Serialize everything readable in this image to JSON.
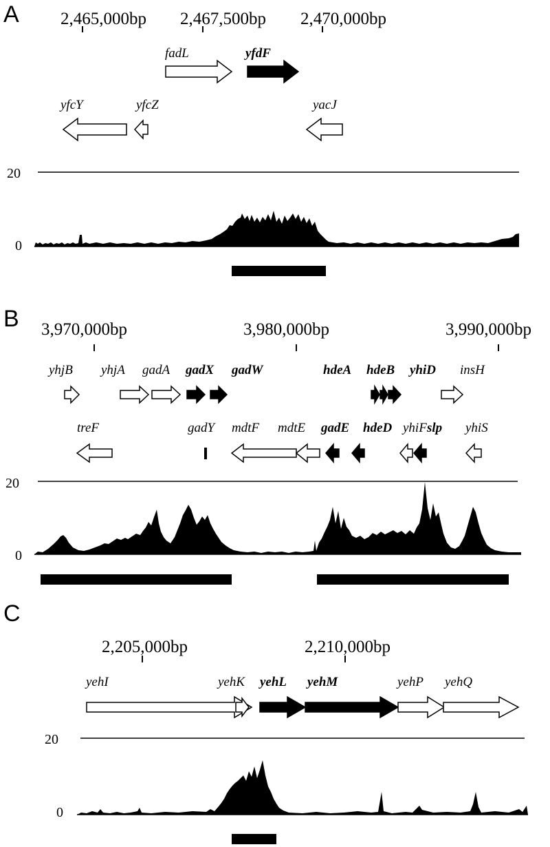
{
  "panels": [
    {
      "label": "A",
      "coordinates": [
        "2,465,000bp",
        "2,467,500bp",
        "2,470,000bp"
      ],
      "genes": [
        {
          "name": "fadL",
          "strand": "+",
          "filled": false
        },
        {
          "name": "yfdF",
          "strand": "+",
          "filled": true
        },
        {
          "name": "yfcY",
          "strand": "-",
          "filled": false
        },
        {
          "name": "yfcZ",
          "strand": "-",
          "filled": false
        },
        {
          "name": "yacJ",
          "strand": "-",
          "filled": false
        }
      ],
      "scale_top": "20",
      "scale_zero": "0"
    },
    {
      "label": "B",
      "coordinates": [
        "3,970,000bp",
        "3,980,000bp",
        "3,990,000bp"
      ],
      "genes": [
        {
          "name": "yhjB",
          "strand": "+",
          "filled": false
        },
        {
          "name": "yhjA",
          "strand": "+",
          "filled": false
        },
        {
          "name": "gadA",
          "strand": "+",
          "filled": false
        },
        {
          "name": "gadX",
          "strand": "+",
          "filled": true
        },
        {
          "name": "gadW",
          "strand": "+",
          "filled": true
        },
        {
          "name": "hdeA",
          "strand": "+",
          "filled": true
        },
        {
          "name": "hdeB",
          "strand": "+",
          "filled": true
        },
        {
          "name": "yhiD",
          "strand": "+",
          "filled": true
        },
        {
          "name": "insH",
          "strand": "+",
          "filled": false
        },
        {
          "name": "treF",
          "strand": "-",
          "filled": false
        },
        {
          "name": "gadY",
          "strand": ".",
          "filled": true
        },
        {
          "name": "mdtF",
          "strand": "-",
          "filled": false
        },
        {
          "name": "mdtE",
          "strand": "-",
          "filled": false
        },
        {
          "name": "gadE",
          "strand": "-",
          "filled": true
        },
        {
          "name": "hdeD",
          "strand": "-",
          "filled": true
        },
        {
          "name": "yhiF",
          "strand": "-",
          "filled": false
        },
        {
          "name": "slp",
          "strand": "-",
          "filled": true
        },
        {
          "name": "yhiS",
          "strand": "-",
          "filled": false
        }
      ],
      "scale_top": "20",
      "scale_zero": "0"
    },
    {
      "label": "C",
      "coordinates": [
        "2,205,000bp",
        "2,210,000bp"
      ],
      "genes": [
        {
          "name": "yehI",
          "strand": "+",
          "filled": false
        },
        {
          "name": "yehK",
          "strand": "+",
          "filled": false
        },
        {
          "name": "yehL",
          "strand": "+",
          "filled": true
        },
        {
          "name": "yehM",
          "strand": "+",
          "filled": true
        },
        {
          "name": "yehP",
          "strand": "+",
          "filled": false
        },
        {
          "name": "yehQ",
          "strand": "+",
          "filled": false
        }
      ],
      "scale_top": "20",
      "scale_zero": "0"
    }
  ]
}
